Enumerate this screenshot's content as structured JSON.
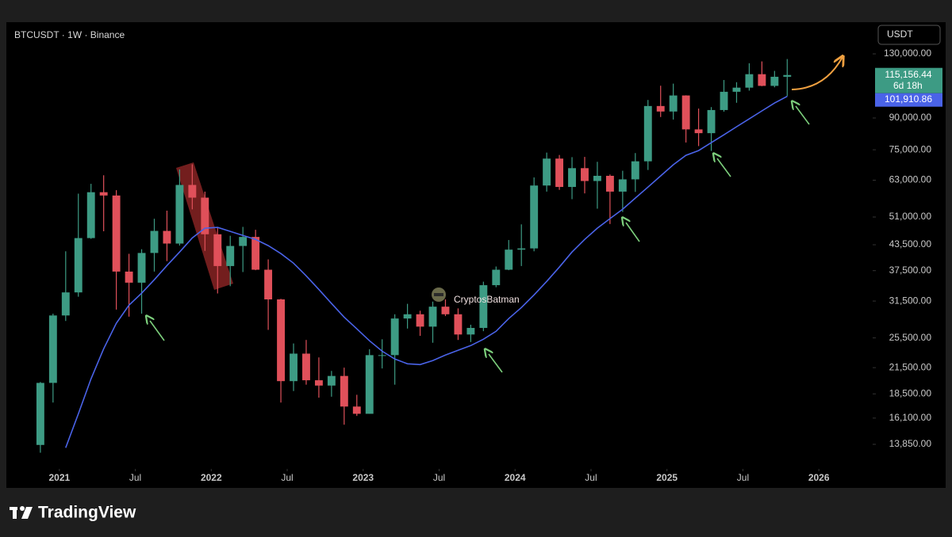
{
  "chart_data": {
    "type": "candlestick",
    "title": "BTCUSDT · 1W · Binance",
    "currency": "USDT",
    "watermark": "CryptosBatman",
    "brand": "TradingView",
    "log_scale": true,
    "grid": false,
    "up_color": "#3d9b84",
    "down_color": "#e0505a",
    "xlim": [
      "2020-09",
      "2026-05"
    ],
    "xticks": [
      {
        "value": "2021-01",
        "label": "2021"
      },
      {
        "value": "2021-07",
        "label": "Jul"
      },
      {
        "value": "2022-01",
        "label": "2022"
      },
      {
        "value": "2022-07",
        "label": "Jul"
      },
      {
        "value": "2023-01",
        "label": "2023"
      },
      {
        "value": "2023-07",
        "label": "Jul"
      },
      {
        "value": "2024-01",
        "label": "2024"
      },
      {
        "value": "2024-07",
        "label": "Jul"
      },
      {
        "value": "2025-01",
        "label": "2025"
      },
      {
        "value": "2025-07",
        "label": "Jul"
      },
      {
        "value": "2026-01",
        "label": "2026"
      }
    ],
    "ylim": [
      12140,
      154500
    ],
    "yticks": [
      {
        "value": 130000,
        "label": "130,000.00"
      },
      {
        "value": 90000,
        "label": "90,000.00"
      },
      {
        "value": 75000,
        "label": "75,000.00"
      },
      {
        "value": 63000,
        "label": "63,000.00"
      },
      {
        "value": 51000,
        "label": "51,000.00"
      },
      {
        "value": 43500,
        "label": "43,500.00"
      },
      {
        "value": 37500,
        "label": "37,500.00"
      },
      {
        "value": 31500,
        "label": "31,500.00"
      },
      {
        "value": 25500,
        "label": "25,500.00"
      },
      {
        "value": 21500,
        "label": "21,500.00"
      },
      {
        "value": 18500,
        "label": "18,500.00"
      },
      {
        "value": 16100,
        "label": "16,100.00"
      },
      {
        "value": 13850,
        "label": "13,850.00"
      }
    ],
    "x": [
      "2020-11",
      "2020-12",
      "2021-01",
      "2021-02",
      "2021-03",
      "2021-04",
      "2021-05",
      "2021-06",
      "2021-07",
      "2021-08",
      "2021-09",
      "2021-10",
      "2021-11",
      "2021-12",
      "2022-01",
      "2022-02",
      "2022-03",
      "2022-04",
      "2022-05",
      "2022-06",
      "2022-07",
      "2022-08",
      "2022-09",
      "2022-10",
      "2022-11",
      "2022-12",
      "2023-01",
      "2023-02",
      "2023-03",
      "2023-04",
      "2023-05",
      "2023-06",
      "2023-07",
      "2023-08",
      "2023-09",
      "2023-10",
      "2023-11",
      "2023-12",
      "2024-01",
      "2024-02",
      "2024-03",
      "2024-04",
      "2024-05",
      "2024-06",
      "2024-07",
      "2024-08",
      "2024-09",
      "2024-10",
      "2024-11",
      "2024-12",
      "2025-01",
      "2025-02",
      "2025-03",
      "2025-04",
      "2025-05",
      "2025-06",
      "2025-07",
      "2025-08",
      "2025-09",
      "2025-10"
    ],
    "open": [
      13800,
      19700,
      29000,
      33100,
      45200,
      58800,
      57700,
      37300,
      35000,
      41500,
      47100,
      43800,
      61300,
      57000,
      46200,
      38500,
      43200,
      45500,
      37700,
      31800,
      19900,
      23300,
      20000,
      19400,
      20500,
      17200,
      16500,
      23100,
      23100,
      28500,
      29200,
      27200,
      30500,
      29200,
      26000,
      27000,
      34500,
      37700,
      42300,
      42600,
      61100,
      71300,
      60600,
      67500,
      62700,
      64600,
      59000,
      63300,
      70200,
      96400,
      93400,
      102400,
      84300,
      82500,
      94200,
      104600,
      107100,
      115700,
      108200,
      114000
    ],
    "high": [
      19800,
      29300,
      41900,
      58300,
      61700,
      64800,
      59500,
      41300,
      42400,
      50500,
      52900,
      67000,
      69000,
      59000,
      47900,
      45800,
      48200,
      47400,
      40000,
      31900,
      24700,
      25200,
      22800,
      21100,
      21500,
      18400,
      23900,
      25300,
      29200,
      31000,
      29800,
      31400,
      31800,
      30200,
      27500,
      35200,
      38400,
      44700,
      48900,
      64000,
      73800,
      72800,
      71900,
      72000,
      70000,
      65100,
      66500,
      73600,
      99800,
      108300,
      109600,
      102500,
      95000,
      95800,
      111900,
      110500,
      123200,
      124500,
      117900,
      126200
    ],
    "low": [
      13200,
      17600,
      28100,
      32300,
      45000,
      47000,
      30000,
      28800,
      29300,
      37300,
      39600,
      43300,
      53300,
      42000,
      32900,
      34300,
      37200,
      37600,
      26700,
      17600,
      18800,
      19500,
      18100,
      18200,
      15500,
      16300,
      16500,
      21400,
      19500,
      26900,
      25800,
      24800,
      28900,
      25200,
      24900,
      26500,
      34100,
      37600,
      38500,
      41900,
      59000,
      59600,
      56500,
      58400,
      53500,
      49000,
      52500,
      58900,
      66800,
      90500,
      89200,
      78200,
      76600,
      74500,
      93300,
      98200,
      105300,
      108000,
      107300,
      102000
    ],
    "close": [
      19700,
      29000,
      33100,
      45200,
      58800,
      57700,
      37300,
      35000,
      41500,
      47100,
      43800,
      61300,
      57000,
      46200,
      38500,
      43200,
      45500,
      37700,
      31800,
      19900,
      23300,
      20000,
      19400,
      20500,
      17200,
      16500,
      23100,
      23100,
      28500,
      29200,
      27200,
      30500,
      29200,
      26000,
      27000,
      34500,
      37700,
      42300,
      42600,
      61100,
      71300,
      60600,
      67500,
      62700,
      64600,
      59000,
      63300,
      70200,
      96400,
      93400,
      102400,
      84300,
      82500,
      94200,
      104600,
      107100,
      115700,
      108200,
      114000,
      115156.44
    ],
    "moving_average": {
      "color": "#4a63e8",
      "x": [
        "2021-01",
        "2021-02",
        "2021-03",
        "2021-04",
        "2021-05",
        "2021-06",
        "2021-07",
        "2021-08",
        "2021-09",
        "2021-10",
        "2021-11",
        "2021-12",
        "2022-01",
        "2022-02",
        "2022-03",
        "2022-04",
        "2022-05",
        "2022-06",
        "2022-07",
        "2022-08",
        "2022-09",
        "2022-10",
        "2022-11",
        "2022-12",
        "2023-01",
        "2023-02",
        "2023-03",
        "2023-04",
        "2023-05",
        "2023-06",
        "2023-07",
        "2023-08",
        "2023-09",
        "2023-10",
        "2023-11",
        "2023-12",
        "2024-01",
        "2024-02",
        "2024-03",
        "2024-04",
        "2024-05",
        "2024-06",
        "2024-07",
        "2024-08",
        "2024-09",
        "2024-10",
        "2024-11",
        "2024-12",
        "2025-01",
        "2025-02",
        "2025-03",
        "2025-04",
        "2025-05",
        "2025-06",
        "2025-07",
        "2025-08",
        "2025-09",
        "2025-10"
      ],
      "values": [
        13580,
        16500,
        20150,
        23960,
        27730,
        30770,
        32940,
        35600,
        38610,
        41730,
        45240,
        47830,
        48060,
        46970,
        45900,
        44850,
        43280,
        41340,
        39130,
        36400,
        33680,
        31060,
        28730,
        26860,
        25090,
        23630,
        22590,
        21980,
        21880,
        22390,
        23110,
        23750,
        24400,
        25310,
        26480,
        28490,
        30340,
        32640,
        35260,
        38270,
        41730,
        44850,
        47830,
        50530,
        53340,
        56850,
        60550,
        64560,
        68820,
        72660,
        74650,
        78130,
        81740,
        85590,
        89530,
        93730,
        98060,
        101910.86
      ]
    },
    "last_price": {
      "value": 115156.44,
      "label": "115,156.44"
    },
    "countdown": "6d 18h",
    "ma_last": {
      "value": 101910.86,
      "label": "101,910.86"
    }
  }
}
